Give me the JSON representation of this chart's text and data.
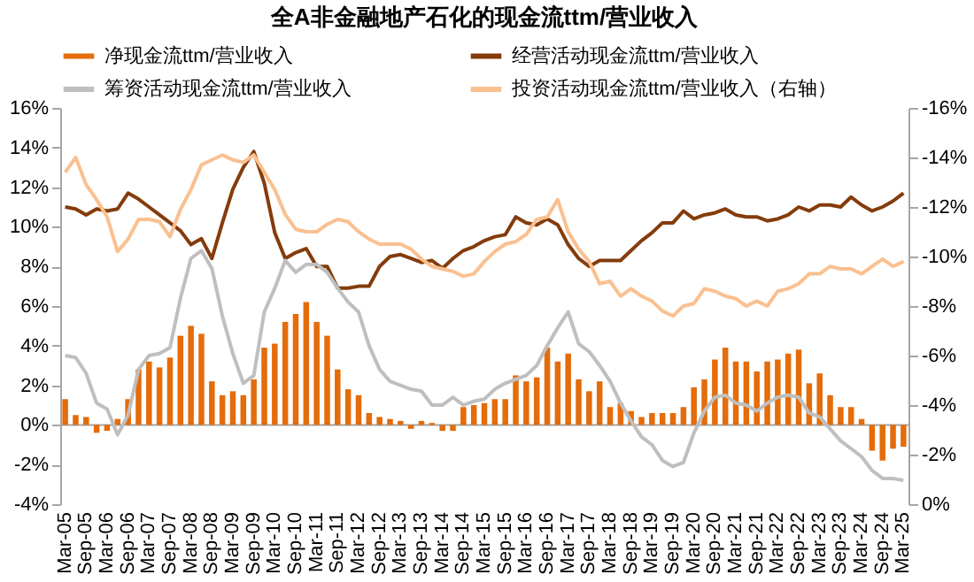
{
  "chart_data": {
    "type": "bar",
    "title": "全A非金融地产石化的现金流ttm/营业收入",
    "categories": [
      "Mar-05",
      null,
      "Sep-05",
      null,
      "Mar-06",
      null,
      "Sep-06",
      null,
      "Mar-07",
      null,
      "Sep-07",
      null,
      "Mar-08",
      null,
      "Sep-08",
      null,
      "Mar-09",
      null,
      "Sep-09",
      null,
      "Mar-10",
      null,
      "Sep-10",
      null,
      "Mar-11",
      null,
      "Sep-11",
      null,
      "Mar-12",
      null,
      "Sep-12",
      null,
      "Mar-13",
      null,
      "Sep-13",
      null,
      "Mar-14",
      null,
      "Sep-14",
      null,
      "Mar-15",
      null,
      "Sep-15",
      null,
      "Mar-16",
      null,
      "Sep-16",
      null,
      "Mar-17",
      null,
      "Sep-17",
      null,
      "Mar-18",
      null,
      "Sep-18",
      null,
      "Mar-19",
      null,
      "Sep-19",
      null,
      "Mar-20",
      null,
      "Sep-20",
      null,
      "Mar-21",
      null,
      "Sep-21",
      null,
      "Mar-22",
      null,
      "Sep-22",
      null,
      "Mar-23",
      null,
      "Sep-23",
      null,
      "Mar-24",
      null,
      "Sep-24",
      null,
      "Mar-25"
    ],
    "series": [
      {
        "name": "净现金流ttm/营业收入",
        "color": "#e46c0a",
        "values": [
          1.3,
          0.5,
          0.4,
          -0.4,
          -0.3,
          0.3,
          1.3,
          2.8,
          3.2,
          2.9,
          3.4,
          4.5,
          5.0,
          4.6,
          2.2,
          1.5,
          1.7,
          1.5,
          2.3,
          3.9,
          4.1,
          5.2,
          5.6,
          6.2,
          5.2,
          4.5,
          2.8,
          1.8,
          1.5,
          0.6,
          0.4,
          0.3,
          0.2,
          -0.2,
          0.2,
          0.1,
          -0.3,
          -0.3,
          0.9,
          1.0,
          1.1,
          1.3,
          1.3,
          2.5,
          2.2,
          2.4,
          3.9,
          3.2,
          3.6,
          2.3,
          1.7,
          2.2,
          0.9,
          1.1,
          0.7,
          0.4,
          0.6,
          0.6,
          0.6,
          0.9,
          1.9,
          2.3,
          3.3,
          3.9,
          3.2,
          3.2,
          2.7,
          3.2,
          3.3,
          3.6,
          3.8,
          2.1,
          2.6,
          1.5,
          0.9,
          0.9,
          0.3,
          -1.3,
          -1.8,
          -1.2,
          -1.1
        ]
      },
      {
        "name": "经营活动现金流ttm/营业收入",
        "type": "line",
        "color": "#843c0c",
        "values": [
          11.0,
          10.9,
          10.6,
          10.9,
          10.8,
          10.9,
          11.7,
          11.4,
          11.0,
          10.6,
          10.2,
          9.8,
          9.1,
          9.4,
          8.4,
          10.2,
          11.9,
          13.0,
          13.8,
          12.2,
          9.7,
          8.4,
          8.7,
          8.9,
          8.0,
          8.0,
          6.9,
          6.9,
          7.0,
          7.0,
          8.0,
          8.5,
          8.6,
          8.4,
          8.2,
          8.3,
          7.9,
          8.4,
          8.8,
          9.0,
          9.3,
          9.5,
          9.6,
          10.5,
          10.2,
          10.1,
          10.4,
          10.1,
          9.1,
          8.4,
          8.0,
          8.3,
          8.3,
          8.3,
          8.8,
          9.3,
          9.7,
          10.2,
          10.2,
          10.8,
          10.4,
          10.6,
          10.7,
          10.9,
          10.6,
          10.5,
          10.5,
          10.3,
          10.4,
          10.6,
          11.0,
          10.8,
          11.1,
          11.1,
          11.0,
          11.5,
          11.1,
          10.8,
          11.0,
          11.3,
          11.7
        ]
      },
      {
        "name": "筹资活动现金流ttm/营业收入",
        "type": "line",
        "color": "#bfbfbf",
        "values": [
          3.5,
          3.4,
          2.6,
          1.1,
          0.8,
          -0.5,
          0.5,
          2.8,
          3.5,
          3.6,
          3.9,
          6.4,
          8.4,
          8.8,
          7.9,
          5.5,
          3.6,
          2.1,
          2.5,
          5.7,
          6.9,
          8.3,
          7.7,
          8.1,
          8.1,
          7.7,
          6.9,
          6.2,
          5.7,
          4.0,
          2.8,
          2.2,
          2.0,
          1.8,
          1.7,
          1.0,
          1.0,
          1.4,
          1.0,
          1.2,
          1.3,
          1.8,
          2.1,
          2.3,
          2.5,
          3.0,
          4.0,
          4.9,
          5.7,
          4.1,
          3.7,
          3.0,
          2.2,
          1.1,
          0.2,
          -0.6,
          -1.0,
          -1.8,
          -2.1,
          -1.9,
          -0.4,
          0.7,
          1.4,
          1.5,
          1.1,
          1.0,
          0.7,
          1.1,
          1.4,
          1.5,
          1.4,
          0.6,
          0.4,
          -0.2,
          -0.8,
          -1.2,
          -1.6,
          -2.3,
          -2.7,
          -2.7,
          -2.8
        ]
      },
      {
        "name": "投资活动现金流ttm/营业收入（右轴）",
        "type": "line",
        "axis": "y2",
        "color": "#fac090",
        "values": [
          -13.4,
          -14.0,
          -12.9,
          -12.3,
          -11.6,
          -10.2,
          -10.7,
          -11.5,
          -11.5,
          -11.4,
          -10.8,
          -11.9,
          -12.7,
          -13.7,
          -13.9,
          -14.1,
          -13.9,
          -13.8,
          -14.1,
          -13.4,
          -12.7,
          -11.7,
          -11.1,
          -11.0,
          -11.0,
          -11.3,
          -11.5,
          -11.4,
          -11.0,
          -10.7,
          -10.5,
          -10.5,
          -10.5,
          -10.3,
          -9.9,
          -9.6,
          -9.5,
          -9.4,
          -9.2,
          -9.3,
          -9.8,
          -10.2,
          -10.5,
          -10.6,
          -10.9,
          -11.5,
          -11.6,
          -12.3,
          -11.0,
          -10.3,
          -9.8,
          -8.9,
          -9.0,
          -8.4,
          -8.7,
          -8.4,
          -8.2,
          -7.8,
          -7.6,
          -8.0,
          -8.1,
          -8.7,
          -8.6,
          -8.4,
          -8.3,
          -8.0,
          -8.2,
          -8.0,
          -8.6,
          -8.7,
          -8.9,
          -9.3,
          -9.3,
          -9.6,
          -9.5,
          -9.5,
          -9.3,
          -9.6,
          -9.9,
          -9.6,
          -9.8
        ]
      }
    ],
    "ylim": [
      -4,
      16
    ],
    "yticks": [
      {
        "value": -4,
        "label": "-4%"
      },
      {
        "value": -2,
        "label": "-2%"
      },
      {
        "value": 0,
        "label": "0%"
      },
      {
        "value": 2,
        "label": "2%"
      },
      {
        "value": 4,
        "label": "4%"
      },
      {
        "value": 6,
        "label": "6%"
      },
      {
        "value": 8,
        "label": "8%"
      },
      {
        "value": 10,
        "label": "10%"
      },
      {
        "value": 12,
        "label": "12%"
      },
      {
        "value": 14,
        "label": "14%"
      },
      {
        "value": 16,
        "label": "16%"
      }
    ],
    "y2lim": [
      0,
      -16
    ],
    "y2ticks": [
      {
        "value": 0,
        "label": "0%"
      },
      {
        "value": -2,
        "label": "-2%"
      },
      {
        "value": -4,
        "label": "-4%"
      },
      {
        "value": -6,
        "label": "-6%"
      },
      {
        "value": -8,
        "label": "-8%"
      },
      {
        "value": -10,
        "label": "-10%"
      },
      {
        "value": -12,
        "label": "-12%"
      },
      {
        "value": -14,
        "label": "-14%"
      },
      {
        "value": -16,
        "label": "-16%"
      }
    ],
    "ref_lines": [
      {
        "axis": "y",
        "value": 0,
        "color": "#a6a6a6"
      }
    ],
    "grid": false,
    "legend": "top"
  }
}
